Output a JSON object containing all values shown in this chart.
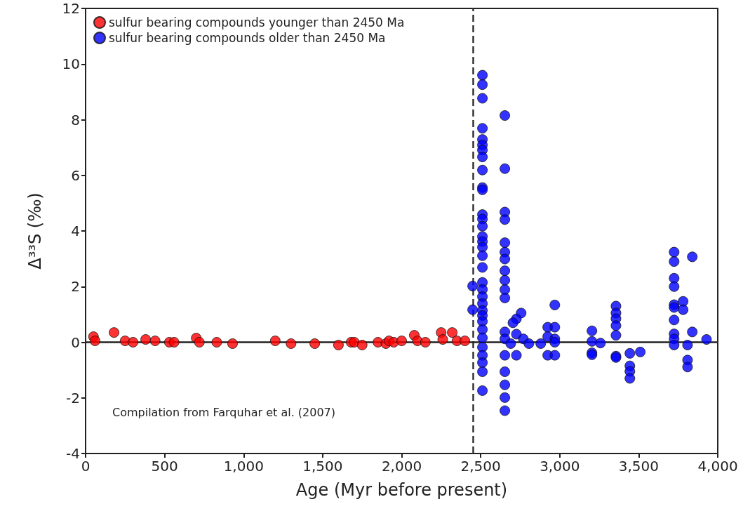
{
  "chart_data": {
    "type": "scatter",
    "xlabel": "Age (Myr before present)",
    "ylabel": "Δ³³S (‰)",
    "xlim": [
      0,
      4000
    ],
    "ylim": [
      -4,
      12
    ],
    "xticks": [
      0,
      500,
      {
        "value": 1000,
        "label": "1,000"
      },
      {
        "value": 1500,
        "label": "1,500"
      },
      {
        "value": 2000,
        "label": "2,000"
      },
      {
        "value": 2500,
        "label": "2,500"
      },
      {
        "value": 3000,
        "label": "3,000"
      },
      {
        "value": 3500,
        "label": "3,500"
      },
      {
        "value": 4000,
        "label": "4,000"
      }
    ],
    "yticks": [
      -4,
      -2,
      0,
      2,
      4,
      6,
      8,
      10,
      12
    ],
    "grid": false,
    "legend": "top left",
    "marker": "circle",
    "series": [
      {
        "name": "sulfur bearing compounds younger than 2450 Ma",
        "color": "#ff0000",
        "x": [
          50,
          60,
          180,
          250,
          300,
          380,
          440,
          530,
          560,
          700,
          720,
          830,
          930,
          1200,
          1300,
          1450,
          1600,
          1680,
          1700,
          1750,
          1850,
          1900,
          1920,
          1950,
          2000,
          2080,
          2100,
          2150,
          2250,
          2260,
          2320,
          2350,
          2400
        ],
        "values": [
          0.2,
          0.05,
          0.35,
          0.05,
          0.0,
          0.1,
          0.05,
          0.0,
          0.0,
          0.15,
          0.0,
          0.0,
          -0.05,
          0.05,
          -0.05,
          -0.05,
          -0.1,
          0.0,
          0.0,
          -0.1,
          0.0,
          -0.05,
          0.05,
          0.0,
          0.05,
          0.25,
          0.05,
          0.0,
          0.35,
          0.1,
          0.35,
          0.05,
          0.05
        ]
      },
      {
        "name": "sulfur bearing compounds older than 2450 Ma",
        "color": "#0000ff",
        "x": [
          2511,
          2511,
          2511,
          2511,
          2511,
          2511,
          2511,
          2511,
          2511,
          2511,
          2511,
          2511,
          2511,
          2511,
          2511,
          2511,
          2511,
          2511,
          2511,
          2511,
          2511,
          2511,
          2511,
          2511,
          2511,
          2511,
          2511,
          2511,
          2511,
          2511,
          2511,
          2511,
          2511,
          2449,
          2449,
          2653,
          2653,
          2653,
          2653,
          2653,
          2653,
          2653,
          2653,
          2653,
          2653,
          2653,
          2653,
          2653,
          2653,
          2653,
          2653,
          2653,
          2653,
          2756,
          2726,
          2704,
          2726,
          2770,
          2690,
          2726,
          2805,
          2880,
          2924,
          2924,
          2924,
          2969,
          2969,
          2969,
          2969,
          2969,
          3204,
          3204,
          3204,
          3204,
          3258,
          3356,
          3356,
          3356,
          3356,
          3356,
          3356,
          3356,
          3444,
          3444,
          3444,
          3444,
          3510,
          3724,
          3724,
          3724,
          3724,
          3724,
          3724,
          3724,
          3724,
          3724,
          3724,
          3781,
          3781,
          3839,
          3839,
          3809,
          3809,
          3809,
          3929
        ],
        "values": [
          9.6,
          9.26,
          8.77,
          7.69,
          7.29,
          7.09,
          6.91,
          6.66,
          6.19,
          5.56,
          5.48,
          4.59,
          4.43,
          4.17,
          3.8,
          3.62,
          3.42,
          3.11,
          2.69,
          2.15,
          1.9,
          1.64,
          1.39,
          1.14,
          0.96,
          0.75,
          0.46,
          0.16,
          -0.18,
          -0.47,
          -0.73,
          -1.06,
          -1.74,
          2.02,
          1.17,
          8.15,
          6.24,
          4.68,
          4.41,
          3.58,
          3.24,
          2.99,
          2.57,
          2.23,
          1.89,
          1.59,
          0.37,
          0.12,
          -0.47,
          -1.06,
          -1.53,
          -1.99,
          -2.46,
          1.05,
          0.84,
          0.7,
          0.29,
          0.12,
          -0.05,
          -0.47,
          -0.05,
          -0.05,
          0.54,
          0.2,
          -0.47,
          1.34,
          0.54,
          0.12,
          0.0,
          -0.47,
          0.41,
          0.03,
          -0.38,
          -0.45,
          -0.03,
          1.3,
          1.05,
          0.85,
          0.6,
          0.25,
          -0.5,
          -0.55,
          -0.4,
          -0.85,
          -1.05,
          -1.3,
          -0.35,
          3.24,
          2.9,
          2.3,
          2.0,
          1.35,
          1.25,
          0.8,
          0.3,
          0.12,
          -0.1,
          1.47,
          1.17,
          3.07,
          0.37,
          -0.1,
          -0.64,
          -0.89,
          0.1
        ]
      }
    ],
    "ref_lines": [
      {
        "axis": "x",
        "value": 2450,
        "color": "#333333",
        "line_style": "dashed"
      },
      {
        "axis": "y",
        "value": 0,
        "color": "#222222",
        "line_style": "solid"
      }
    ],
    "annotations": [
      "Compilation from Farquhar et al. (2007)"
    ]
  }
}
